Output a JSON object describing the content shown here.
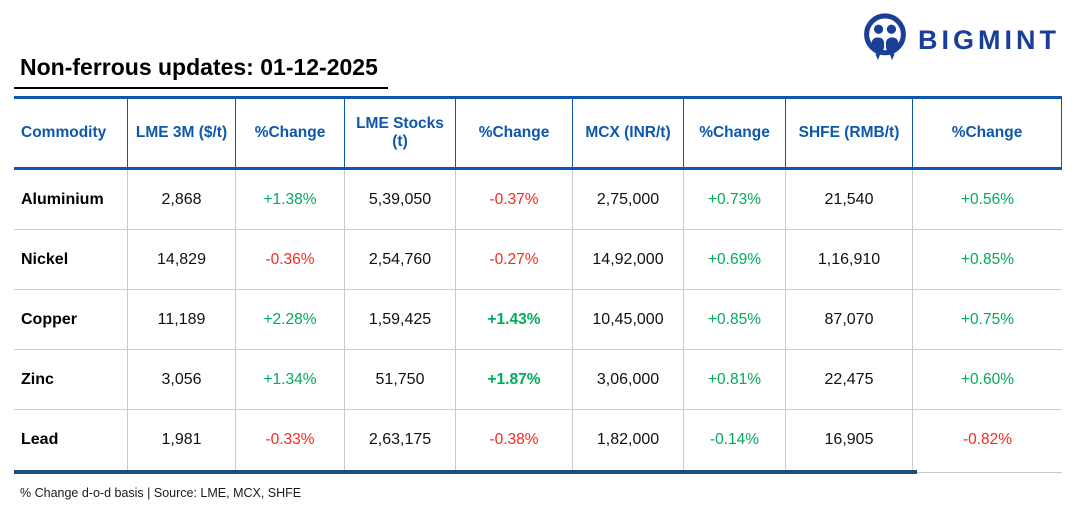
{
  "brand": {
    "wordmark": "BIGMINT",
    "icon": "bigmint-logo-icon",
    "color": "#1A3F97"
  },
  "colors": {
    "header_blue": "#0D57AC",
    "rule_navy": "#1B4A7D",
    "positive_green": "#00AC5B",
    "negative_red": "#F42A1E",
    "grid_gray": "#CCCCCC"
  },
  "chart_data": {
    "type": "table",
    "title": "Non-ferrous updates: 01-12-2025",
    "footnote": "% Change d-o-d basis | Source: LME, MCX, SHFE",
    "columns": [
      "Commodity",
      "LME 3M ($/t)",
      "%Change",
      "LME Stocks (t)",
      "%Change",
      "MCX (INR/t)",
      "%Change",
      "SHFE (RMB/t)",
      "%Change"
    ],
    "rows": [
      {
        "cells": [
          {
            "text": "Aluminium"
          },
          {
            "text": "2,868"
          },
          {
            "text": "+1.38%",
            "color": "green"
          },
          {
            "text": "5,39,050"
          },
          {
            "text": "-0.37%",
            "color": "red"
          },
          {
            "text": "2,75,000"
          },
          {
            "text": "+0.73%",
            "color": "green"
          },
          {
            "text": "21,540"
          },
          {
            "text": "+0.56%",
            "color": "green"
          }
        ]
      },
      {
        "cells": [
          {
            "text": "Nickel"
          },
          {
            "text": "14,829"
          },
          {
            "text": "-0.36%",
            "color": "red"
          },
          {
            "text": "2,54,760"
          },
          {
            "text": "-0.27%",
            "color": "red"
          },
          {
            "text": "14,92,000"
          },
          {
            "text": "+0.69%",
            "color": "green"
          },
          {
            "text": "1,16,910"
          },
          {
            "text": "+0.85%",
            "color": "green"
          }
        ]
      },
      {
        "cells": [
          {
            "text": "Copper"
          },
          {
            "text": "11,189"
          },
          {
            "text": "+2.28%",
            "color": "green"
          },
          {
            "text": "1,59,425"
          },
          {
            "text": "+1.43%",
            "color": "green",
            "bold": true
          },
          {
            "text": "10,45,000"
          },
          {
            "text": "+0.85%",
            "color": "green"
          },
          {
            "text": "87,070"
          },
          {
            "text": "+0.75%",
            "color": "green"
          }
        ]
      },
      {
        "cells": [
          {
            "text": "Zinc"
          },
          {
            "text": "3,056"
          },
          {
            "text": "+1.34%",
            "color": "green"
          },
          {
            "text": "51,750"
          },
          {
            "text": "+1.87%",
            "color": "green",
            "bold": true
          },
          {
            "text": "3,06,000"
          },
          {
            "text": "+0.81%",
            "color": "green"
          },
          {
            "text": "22,475"
          },
          {
            "text": "+0.60%",
            "color": "green"
          }
        ]
      },
      {
        "cells": [
          {
            "text": "Lead"
          },
          {
            "text": "1,981"
          },
          {
            "text": "-0.33%",
            "color": "red"
          },
          {
            "text": "2,63,175"
          },
          {
            "text": "-0.38%",
            "color": "red"
          },
          {
            "text": "1,82,000"
          },
          {
            "text": "-0.14%",
            "color": "green"
          },
          {
            "text": "16,905"
          },
          {
            "text": "-0.82%",
            "color": "red"
          }
        ]
      }
    ]
  }
}
